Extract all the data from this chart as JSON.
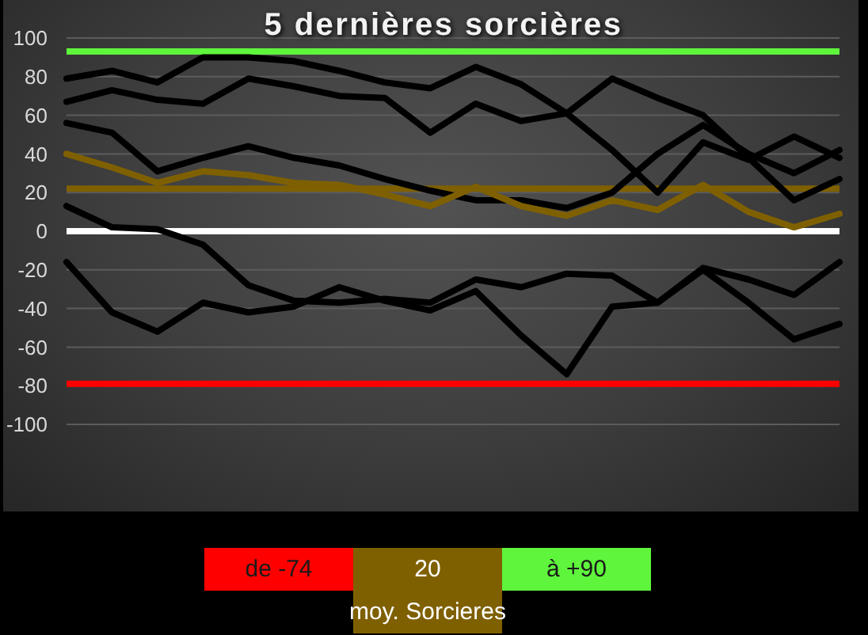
{
  "chart_data": {
    "type": "line",
    "title": "5 dernières sorcières",
    "categories": [
      null,
      null,
      null,
      null,
      null,
      null,
      null,
      null,
      null,
      null,
      null,
      null,
      null,
      null,
      null,
      null,
      null,
      null
    ],
    "series": [
      {
        "color": "#000000",
        "values": [
          79,
          83,
          77,
          90,
          90,
          88,
          83,
          77,
          74,
          85,
          76,
          61,
          42,
          20,
          46,
          37,
          49,
          38
        ]
      },
      {
        "color": "#000000",
        "values": [
          67,
          73,
          68,
          66,
          79,
          75,
          70,
          69,
          51,
          66,
          57,
          61,
          79,
          69,
          60,
          38,
          16,
          27
        ]
      },
      {
        "color": "#000000",
        "values": [
          56,
          51,
          31,
          38,
          44,
          38,
          34,
          27,
          21,
          16,
          16,
          12,
          20,
          40,
          55,
          40,
          30,
          42
        ]
      },
      {
        "color": "#000000",
        "values": [
          13,
          2,
          1,
          -7,
          -28,
          -36,
          -37,
          -35,
          -37,
          -25,
          -29,
          -22,
          -23,
          -37,
          -19,
          -25,
          -33,
          -16
        ]
      },
      {
        "color": "#000000",
        "values": [
          -16,
          -42,
          -52,
          -37,
          -42,
          -39,
          -29,
          -36,
          -41,
          -31,
          -54,
          -74,
          -39,
          -37,
          -20,
          -37,
          -56,
          -48
        ]
      },
      {
        "color": "#7f6000",
        "values": [
          40,
          33,
          25,
          31,
          29,
          25,
          24,
          19,
          13,
          23,
          13,
          8,
          16,
          11,
          24,
          10,
          2,
          9
        ]
      }
    ],
    "ylim": [
      -100,
      100
    ],
    "yticks": [
      -100,
      -80,
      -60,
      -40,
      -20,
      0,
      20,
      40,
      60,
      80,
      100
    ],
    "grid": "y",
    "marker": "none",
    "line_style": "solid",
    "ref_lines": [
      {
        "axis": "y",
        "value": -79,
        "color": "#ff0000"
      },
      {
        "axis": "y",
        "value": 22,
        "color": "#7f6000"
      },
      {
        "axis": "y",
        "value": 93,
        "color": "#5ff53c"
      },
      {
        "axis": "y",
        "value": 0,
        "color": "#ffffff"
      }
    ],
    "annotations": [
      "de -74",
      "20\nmoy. Sorcieres",
      "à +90"
    ]
  }
}
